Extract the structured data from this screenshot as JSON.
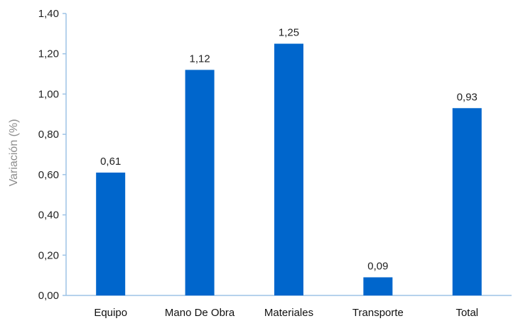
{
  "chart_data": {
    "type": "bar",
    "title": "",
    "xlabel": "",
    "ylabel": "Variación (%)",
    "categories": [
      "Equipo",
      "Mano De Obra",
      "Materiales",
      "Transporte",
      "Total"
    ],
    "values": [
      0.61,
      1.12,
      1.25,
      0.09,
      0.93
    ],
    "value_labels": [
      "0,61",
      "1,12",
      "1,25",
      "0,09",
      "0,93"
    ],
    "ylim": [
      0,
      1.4
    ],
    "yticks": [
      0,
      0.2,
      0.4,
      0.6,
      0.8,
      1.0,
      1.2,
      1.4
    ],
    "ytick_labels": [
      "0,00",
      "0,20",
      "0,40",
      "0,60",
      "0,80",
      "1,00",
      "1,20",
      "1,40"
    ],
    "grid": false,
    "legend": "none",
    "colors": {
      "bar": "#0066CC",
      "axis": "#9DC3E6"
    }
  }
}
